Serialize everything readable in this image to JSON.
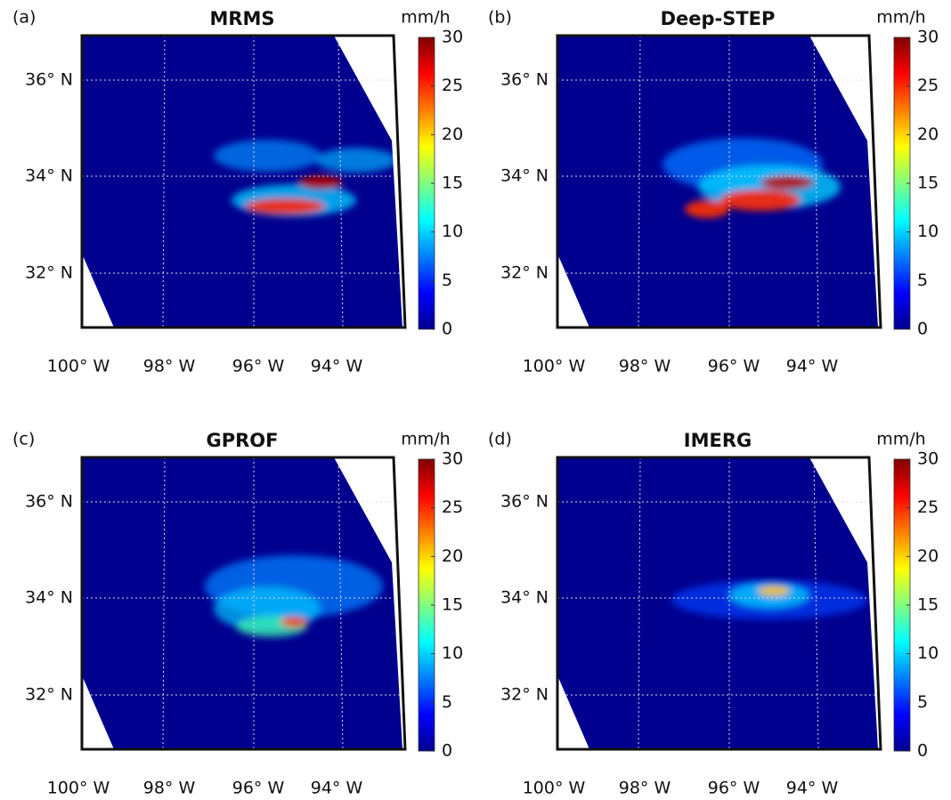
{
  "panels": [
    {
      "label": "(a)",
      "title": "MRMS",
      "unit": "mm/h",
      "colorbar": {
        "lim": [
          0,
          30
        ],
        "ticks": [
          0,
          5,
          10,
          15,
          20,
          25,
          30
        ]
      },
      "lat_labels": [
        "36° N",
        "34° N",
        "32° N"
      ],
      "lon_labels": [
        "100° W",
        "98° W",
        "96° W",
        "94° W"
      ]
    },
    {
      "label": "(b)",
      "title": "Deep-STEP",
      "unit": "mm/h",
      "colorbar": {
        "lim": [
          0,
          30
        ],
        "ticks": [
          0,
          5,
          10,
          15,
          20,
          25,
          30
        ]
      },
      "lat_labels": [
        "36° N",
        "34° N",
        "32° N"
      ],
      "lon_labels": [
        "100° W",
        "98° W",
        "96° W",
        "94° W"
      ]
    },
    {
      "label": "(c)",
      "title": "GPROF",
      "unit": "mm/h",
      "colorbar": {
        "lim": [
          0,
          30
        ],
        "ticks": [
          0,
          5,
          10,
          15,
          20,
          25,
          30
        ]
      },
      "lat_labels": [
        "36° N",
        "34° N",
        "32° N"
      ],
      "lon_labels": [
        "100° W",
        "98° W",
        "96° W",
        "94° W"
      ]
    },
    {
      "label": "(d)",
      "title": "IMERG",
      "unit": "mm/h",
      "colorbar": {
        "lim": [
          0,
          30
        ],
        "ticks": [
          0,
          5,
          10,
          15,
          20,
          25,
          30
        ]
      },
      "lat_labels": [
        "36° N",
        "34° N",
        "32° N"
      ],
      "lon_labels": [
        "100° W",
        "98° W",
        "96° W",
        "94° W"
      ]
    }
  ]
}
